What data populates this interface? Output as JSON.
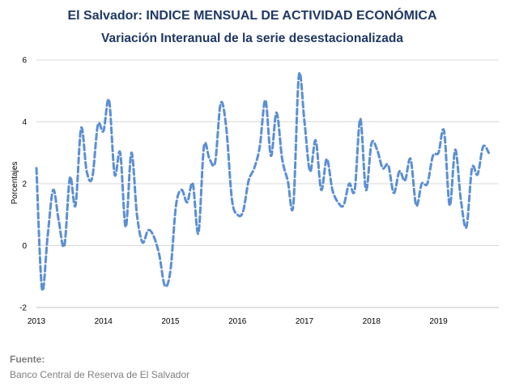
{
  "chart_data": {
    "type": "line",
    "title": "El Salvador: INDICE MENSUAL DE ACTIVIDAD ECONÓMICA",
    "subtitle": "Variación Interanual de la serie desestacionalizada",
    "xlabel": "",
    "ylabel": "Porcentajes",
    "ylim": [
      -2,
      6
    ],
    "yticks": [
      -2,
      0,
      2,
      4,
      6
    ],
    "xticks": [
      "2013",
      "2014",
      "2015",
      "2016",
      "2017",
      "2018",
      "2019"
    ],
    "grid": "horizontal",
    "legend": "none",
    "line_color": "#5b8fd4",
    "line_style": "dashed",
    "series": [
      {
        "x": [
          2013.0,
          2013.083,
          2013.167,
          2013.25,
          2013.333,
          2013.417,
          2013.5,
          2013.583,
          2013.667,
          2013.75,
          2013.833,
          2013.917,
          2014.0,
          2014.083,
          2014.167,
          2014.25,
          2014.333,
          2014.417,
          2014.5,
          2014.583,
          2014.667,
          2014.75,
          2014.833,
          2014.917,
          2015.0,
          2015.083,
          2015.167,
          2015.25,
          2015.333,
          2015.417,
          2015.5,
          2015.583,
          2015.667,
          2015.75,
          2015.833,
          2015.917,
          2016.0,
          2016.083,
          2016.167,
          2016.25,
          2016.333,
          2016.417,
          2016.5,
          2016.583,
          2016.667,
          2016.75,
          2016.833,
          2016.917,
          2017.0,
          2017.083,
          2017.167,
          2017.25,
          2017.333,
          2017.417,
          2017.5,
          2017.583,
          2017.667,
          2017.75,
          2017.833,
          2017.917,
          2018.0,
          2018.083,
          2018.167,
          2018.25,
          2018.333,
          2018.417,
          2018.5,
          2018.583,
          2018.667,
          2018.75,
          2018.833,
          2018.917,
          2019.0,
          2019.083,
          2019.167,
          2019.25,
          2019.333,
          2019.417,
          2019.5,
          2019.583,
          2019.667,
          2019.75
        ],
        "values": [
          2.5,
          -1.4,
          0.3,
          1.8,
          0.8,
          0.0,
          2.2,
          1.3,
          3.8,
          2.4,
          2.2,
          3.9,
          3.7,
          4.7,
          2.3,
          3.0,
          0.6,
          3.0,
          1.0,
          0.1,
          0.5,
          0.3,
          -0.3,
          -1.3,
          -0.8,
          1.3,
          1.8,
          1.4,
          2.0,
          0.4,
          3.2,
          2.8,
          2.7,
          4.6,
          3.8,
          1.5,
          1.0,
          1.1,
          2.1,
          2.5,
          3.2,
          4.7,
          2.9,
          4.3,
          2.8,
          2.1,
          1.3,
          5.5,
          4.0,
          2.4,
          3.4,
          1.8,
          2.8,
          1.8,
          1.4,
          1.3,
          2.0,
          1.8,
          4.1,
          1.8,
          3.3,
          3.1,
          2.5,
          2.6,
          1.7,
          2.4,
          2.1,
          2.8,
          1.3,
          2.0,
          2.0,
          2.9,
          3.0,
          3.7,
          1.3,
          3.1,
          1.5,
          0.6,
          2.5,
          2.3,
          3.2,
          3.0
        ]
      }
    ]
  },
  "source": {
    "label": "Fuente:",
    "text": "Banco Central de Reserva de El Salvador"
  }
}
